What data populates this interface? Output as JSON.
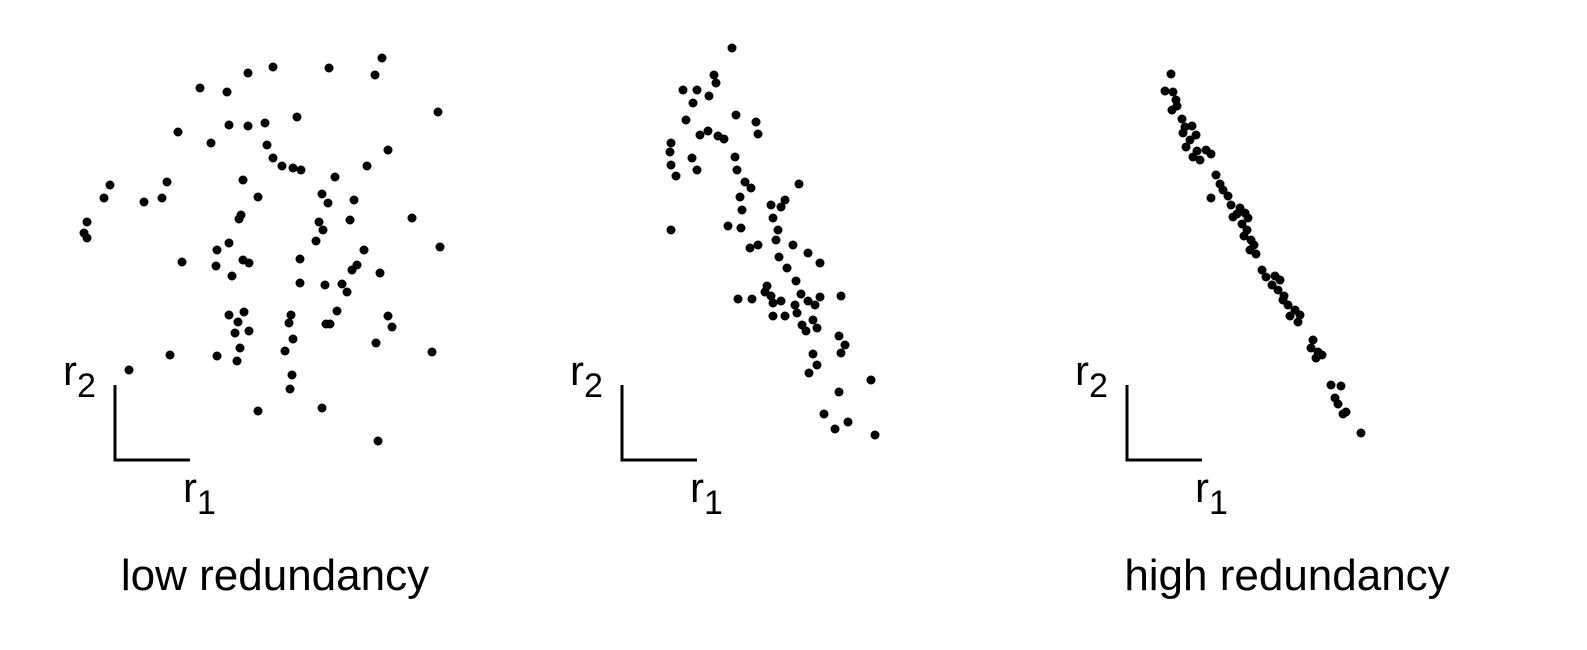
{
  "chart_data": [
    {
      "type": "scatter",
      "title": "low redundancy",
      "x_label": "r1",
      "y_label": "r2",
      "color": "#000000",
      "xlim": [
        0,
        380
      ],
      "ylim": [
        0,
        420
      ],
      "x": [
        312,
        305,
        259,
        203,
        178,
        130,
        157,
        368,
        227,
        195,
        178,
        159,
        108,
        141,
        197,
        318,
        203,
        212,
        223,
        231,
        297,
        40,
        34,
        97,
        92,
        74,
        173,
        188,
        252,
        258,
        265,
        284,
        17,
        14,
        17,
        171,
        169,
        249,
        253,
        280,
        342,
        147,
        159,
        146,
        173,
        179,
        112,
        246,
        230,
        287,
        294,
        282,
        370,
        162,
        230,
        255,
        272,
        277,
        310,
        159,
        174,
        168,
        179,
        165,
        221,
        219,
        267,
        256,
        260,
        318,
        322,
        223,
        170,
        306,
        100,
        147,
        167,
        215,
        362,
        59,
        222,
        220,
        188,
        252,
        308
      ],
      "y": [
        402,
        385,
        392,
        393,
        387,
        372,
        368,
        348,
        343,
        337,
        334,
        335,
        328,
        317,
        315,
        310,
        302,
        294,
        292,
        290,
        294,
        275,
        262,
        278,
        262,
        258,
        280,
        263,
        266,
        257,
        283,
        260,
        238,
        227,
        222,
        245,
        241,
        238,
        230,
        240,
        242,
        210,
        217,
        194,
        200,
        197,
        198,
        219,
        201,
        195,
        210,
        190,
        213,
        184,
        177,
        175,
        176,
        168,
        187,
        145,
        148,
        138,
        129,
        127,
        145,
        137,
        149,
        136,
        136,
        144,
        133,
        121,
        112,
        117,
        105,
        104,
        99,
        109,
        108,
        90,
        85,
        71,
        49,
        52,
        19
      ]
    },
    {
      "type": "scatter",
      "x_label": "r1",
      "y_label": "r2",
      "color": "#000000",
      "xlim": [
        0,
        380
      ],
      "ylim": [
        0,
        420
      ],
      "x": [
        155,
        137,
        139,
        120,
        106,
        132,
        116,
        159,
        179,
        181,
        109,
        131,
        141,
        147,
        123,
        94,
        93,
        115,
        94,
        99,
        120,
        158,
        160,
        168,
        174,
        163,
        222,
        208,
        204,
        194,
        165,
        196,
        94,
        151,
        164,
        201,
        199,
        216,
        181,
        173,
        202,
        231,
        243,
        210,
        219,
        190,
        194,
        161,
        175,
        188,
        196,
        204,
        218,
        231,
        224,
        243,
        238,
        264,
        196,
        208,
        220,
        225,
        236,
        240,
        229,
        262,
        268,
        264,
        236,
        240,
        232,
        294,
        262,
        247,
        258,
        271,
        298
      ],
      "y": [
        412,
        385,
        377,
        370,
        370,
        364,
        357,
        345,
        338,
        326,
        340,
        329,
        324,
        321,
        325,
        317,
        308,
        302,
        295,
        284,
        290,
        303,
        290,
        278,
        272,
        263,
        276,
        260,
        253,
        255,
        250,
        242,
        230,
        234,
        232,
        230,
        220,
        215,
        215,
        212,
        203,
        207,
        197,
        192,
        179,
        174,
        164,
        161,
        161,
        168,
        157,
        159,
        155,
        159,
        166,
        163,
        155,
        164,
        144,
        144,
        147,
        135,
        140,
        132,
        129,
        124,
        115,
        107,
        106,
        95,
        87,
        80,
        68,
        46,
        31,
        38,
        25
      ]
    },
    {
      "type": "scatter",
      "title": "high redundancy",
      "x_label": "r1",
      "y_label": "r2",
      "color": "#000000",
      "xlim": [
        0,
        380
      ],
      "ylim": [
        0,
        420
      ],
      "x": [
        89,
        83,
        91,
        94,
        95,
        90,
        100,
        103,
        110,
        101,
        108,
        114,
        104,
        115,
        124,
        129,
        111,
        118,
        134,
        138,
        141,
        146,
        129,
        149,
        158,
        155,
        163,
        166,
        151,
        160,
        165,
        162,
        169,
        172,
        168,
        174,
        180,
        184,
        193,
        190,
        198,
        196,
        202,
        201,
        206,
        213,
        208,
        216,
        218,
        231,
        229,
        236,
        234,
        240,
        249,
        259,
        253,
        256,
        264,
        261,
        279
      ],
      "y": [
        386,
        369,
        368,
        360,
        354,
        350,
        341,
        333,
        334,
        327,
        320,
        325,
        313,
        309,
        310,
        306,
        303,
        300,
        285,
        276,
        270,
        264,
        262,
        255,
        252,
        246,
        247,
        242,
        243,
        236,
        230,
        224,
        220,
        215,
        210,
        206,
        190,
        183,
        184,
        175,
        180,
        170,
        164,
        160,
        155,
        150,
        144,
        138,
        145,
        120,
        112,
        108,
        102,
        105,
        75,
        74,
        62,
        56,
        48,
        46,
        27
      ]
    }
  ]
}
